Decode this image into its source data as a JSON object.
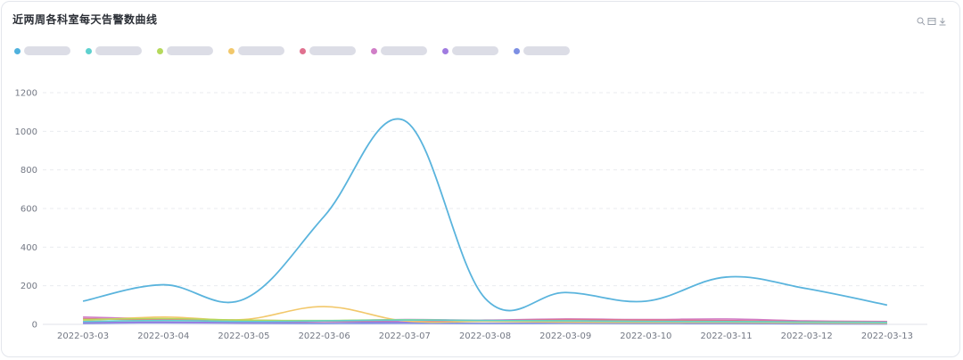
{
  "title": "近两周各科室每天告警数曲线",
  "toolbox": {
    "icons": [
      "zoom-icon",
      "data-view-icon",
      "download-icon"
    ]
  },
  "legend": {
    "items": [
      {
        "label": "",
        "color": "#4fb1dd"
      },
      {
        "label": "",
        "color": "#5ed1cf"
      },
      {
        "label": "",
        "color": "#b5d95c"
      },
      {
        "label": "",
        "color": "#f2c86b"
      },
      {
        "label": "",
        "color": "#e0718f"
      },
      {
        "label": "",
        "color": "#d07ec7"
      },
      {
        "label": "",
        "color": "#a07be0"
      },
      {
        "label": "",
        "color": "#7d8fe3"
      }
    ]
  },
  "chart_data": {
    "type": "line",
    "title": "近两周各科室每天告警数曲线",
    "xlabel": "",
    "ylabel": "",
    "ylim": [
      0,
      1200
    ],
    "yticks": [
      0,
      200,
      400,
      600,
      800,
      1000,
      1200
    ],
    "grid": true,
    "smooth": true,
    "categories": [
      "2022-03-03",
      "2022-03-04",
      "2022-03-05",
      "2022-03-06",
      "2022-03-07",
      "2022-03-08",
      "2022-03-09",
      "2022-03-10",
      "2022-03-11",
      "2022-03-12",
      "2022-03-13"
    ],
    "series": [
      {
        "color": "#5ab4dd",
        "values": [
          120,
          205,
          130,
          560,
          1055,
          135,
          165,
          120,
          245,
          185,
          100
        ]
      },
      {
        "color": "#5ed1cf",
        "values": [
          15,
          20,
          15,
          18,
          22,
          20,
          18,
          15,
          14,
          12,
          10
        ]
      },
      {
        "color": "#b5d95c",
        "values": [
          25,
          30,
          22,
          20,
          24,
          20,
          18,
          16,
          15,
          12,
          10
        ]
      },
      {
        "color": "#f2c86b",
        "values": [
          20,
          38,
          25,
          92,
          18,
          15,
          12,
          10,
          10,
          8,
          6
        ]
      },
      {
        "color": "#e0718f",
        "values": [
          30,
          22,
          18,
          15,
          20,
          18,
          25,
          22,
          20,
          15,
          12
        ]
      },
      {
        "color": "#d07ec7",
        "values": [
          38,
          28,
          22,
          18,
          25,
          22,
          28,
          25,
          28,
          18,
          15
        ]
      },
      {
        "color": "#a07be0",
        "values": [
          10,
          12,
          10,
          14,
          12,
          16,
          14,
          12,
          10,
          8,
          6
        ]
      },
      {
        "color": "#7d8fe3",
        "values": [
          5,
          8,
          6,
          5,
          6,
          5,
          6,
          5,
          4,
          3,
          2
        ]
      }
    ]
  }
}
